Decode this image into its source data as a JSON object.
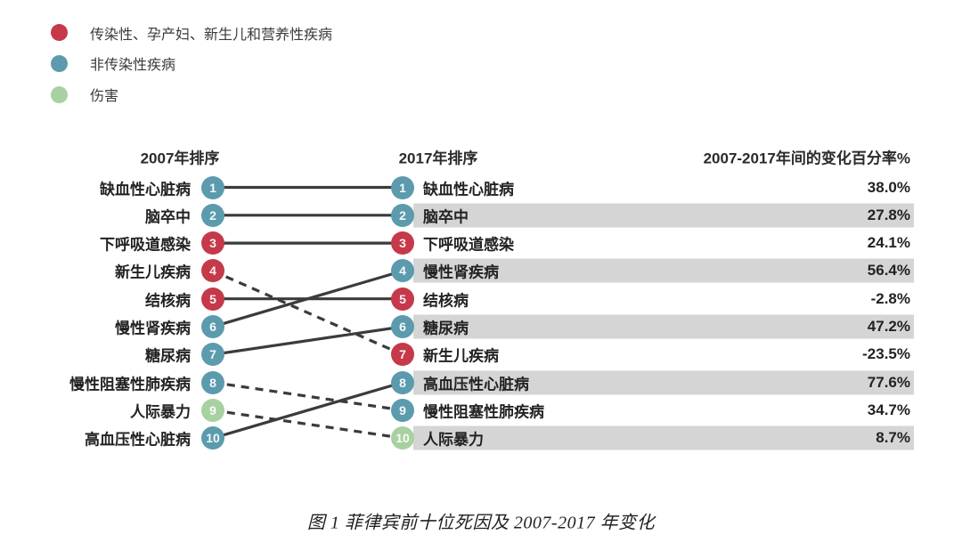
{
  "colors": {
    "communicable": "#c5394a",
    "noncommunicable": "#5b9bad",
    "injury": "#a7d1a0",
    "line": "#3b3b3b",
    "band": "#d5d5d5",
    "text": "#222222"
  },
  "legend": {
    "items": [
      {
        "key": "communicable",
        "label": "传染性、孕产妇、新生儿和营养性疾病"
      },
      {
        "key": "noncommunicable",
        "label": "非传染性疾病"
      },
      {
        "key": "injury",
        "label": "伤害"
      }
    ]
  },
  "header": {
    "col_2007": "2007年排序",
    "col_2017": "2017年排序",
    "col_change": "2007-2017年间的变化百分率%"
  },
  "caption": "图 1 菲律宾前十位死因及 2007-2017 年变化",
  "chart_data": {
    "type": "line",
    "subtype": "rank-slope",
    "title": "图 1 菲律宾前十位死因及 2007-2017 年变化",
    "columns": [
      "2007年排序",
      "2017年排序",
      "2007-2017年间的变化百分率%"
    ],
    "legend_entries": [
      "传染性、孕产妇、新生儿和营养性疾病",
      "非传染性疾病",
      "伤害"
    ],
    "rank_range": [
      1,
      10
    ],
    "banded_2017_ranks": [
      2,
      4,
      6,
      8,
      10
    ],
    "causes": [
      {
        "name": "缺血性心脏病",
        "category": "noncommunicable",
        "rank_2007": 1,
        "rank_2017": 1,
        "change_pct": "38.0%",
        "line_style": "solid"
      },
      {
        "name": "脑卒中",
        "category": "noncommunicable",
        "rank_2007": 2,
        "rank_2017": 2,
        "change_pct": "27.8%",
        "line_style": "solid"
      },
      {
        "name": "下呼吸道感染",
        "category": "communicable",
        "rank_2007": 3,
        "rank_2017": 3,
        "change_pct": "24.1%",
        "line_style": "solid"
      },
      {
        "name": "新生儿疾病",
        "category": "communicable",
        "rank_2007": 4,
        "rank_2017": 7,
        "change_pct": "-23.5%",
        "line_style": "dashed"
      },
      {
        "name": "结核病",
        "category": "communicable",
        "rank_2007": 5,
        "rank_2017": 5,
        "change_pct": "-2.8%",
        "line_style": "solid"
      },
      {
        "name": "慢性肾疾病",
        "category": "noncommunicable",
        "rank_2007": 6,
        "rank_2017": 4,
        "change_pct": "56.4%",
        "line_style": "solid"
      },
      {
        "name": "糖尿病",
        "category": "noncommunicable",
        "rank_2007": 7,
        "rank_2017": 6,
        "change_pct": "47.2%",
        "line_style": "solid"
      },
      {
        "name": "慢性阻塞性肺疾病",
        "category": "noncommunicable",
        "rank_2007": 8,
        "rank_2017": 9,
        "change_pct": "34.7%",
        "line_style": "dashed"
      },
      {
        "name": "人际暴力",
        "category": "injury",
        "rank_2007": 9,
        "rank_2017": 10,
        "change_pct": "8.7%",
        "line_style": "dashed"
      },
      {
        "name": "高血压性心脏病",
        "category": "noncommunicable",
        "rank_2007": 10,
        "rank_2017": 8,
        "change_pct": "77.6%",
        "line_style": "solid"
      }
    ]
  }
}
